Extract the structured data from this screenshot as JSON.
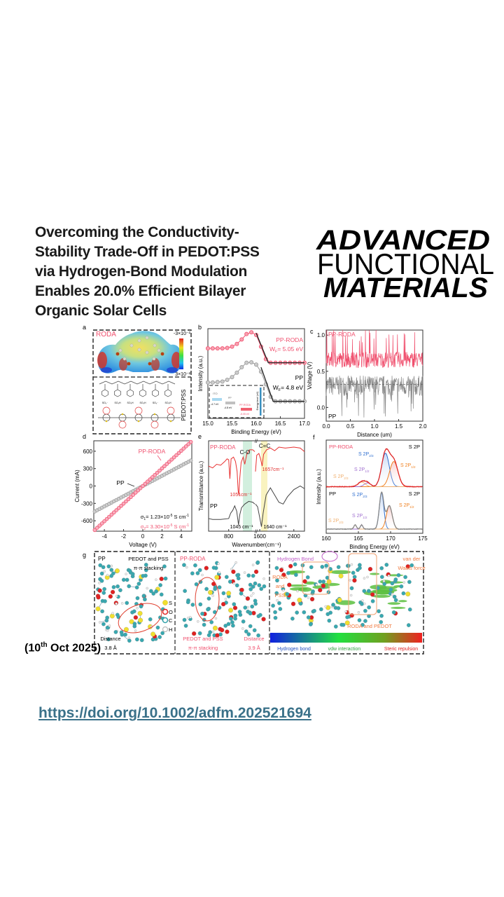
{
  "header": {
    "title_lines": [
      "Overcoming the Conductivity-",
      "Stability Trade-Off in PEDOT:PSS",
      "via Hydrogen-Bond Modulation",
      "Enables 20.0% Efficient Bilayer",
      "Organic Solar Cells"
    ],
    "journal_logo_lines": [
      "ADVANCED",
      "FUNCTIONAL",
      "MATERIALS"
    ]
  },
  "date": {
    "open": "(10",
    "sup": "th",
    "close": " Oct 2025)"
  },
  "doi_link": "https://doi.org/10.1002/adfm.202521694",
  "colors": {
    "pp_roda": "#f0506e",
    "pp": "#8a8a8a",
    "doi": "#3a7189",
    "annotation": "#f08a50",
    "hbond": "#c060c8"
  },
  "figure": {
    "labels": {
      "a": "a",
      "b": "b",
      "c": "c",
      "d": "d",
      "e": "e",
      "f": "f",
      "g": "g"
    },
    "a": {
      "molecule": "RODA",
      "scale_top": "-3×10⁻²",
      "scale_bottom": "3×10⁻²",
      "polymer": "PEDOT:PSS",
      "pss_groups": [
        "SO₃⁻",
        "SO₃H",
        "SO₃H",
        "SO₃H",
        "SO₃⁻",
        "SO₃H"
      ]
    },
    "b": {
      "roda_label": "PP-RODA",
      "roda_wf_main": "W",
      "roda_wf_sub": "F",
      "roda_wf_val": "= 5.05 eV",
      "pp_label": "PP",
      "pp_wf_main": "W",
      "pp_wf_sub": "F",
      "pp_wf_val": "= 4.8 eV",
      "inset": {
        "ito": "ITO",
        "ito_val": "-4.7 eV",
        "pp": "PP",
        "pp_val": "-4.8 eV",
        "roda": "PP-RODA",
        "roda_val": "-5.05 eV",
        "axis": "Energy level (eV)"
      }
    },
    "c": {
      "roda_label": "PP-RODA",
      "pp_label": "PP"
    },
    "d": {
      "roda_label": "PP-RODA",
      "pp_label": "PP",
      "sigma1": {
        "sym": "σ",
        "sub": "1",
        "val": "= 1.23×10",
        "exp": "-5",
        "unit": " S cm",
        "unit_exp": "-1"
      },
      "sigma2": {
        "sym": "σ",
        "sub": "2",
        "val": "= 3.30×10",
        "exp": "-5",
        "unit": " S cm",
        "unit_exp": "-1"
      }
    },
    "e": {
      "roda_label": "PP-RODA",
      "pp_label": "PP",
      "co": "C-O",
      "cc": "C=C",
      "roda_peak1": "1051cm⁻¹",
      "roda_peak2": "1657cm⁻¹",
      "pp_peak1": "1045 cm⁻¹",
      "pp_peak2": "1640 cm⁻¹"
    },
    "f": {
      "roda_label": "PP-RODA",
      "pp_label": "PP",
      "s2p": "S 2P",
      "p_main": "S 2P",
      "sub_23": "2/3",
      "sub_12": "1/2"
    },
    "g": {
      "pp": "PP",
      "pp_title1": "PEDOT and PSS",
      "pp_title2": "π-π stacking",
      "legend": [
        "S",
        "O",
        "C",
        "H"
      ],
      "pp_dist1": "Distance",
      "pp_dist2": "3.8 Å",
      "roda": "PP-RODA",
      "roda_stack1": "PEDOT and PSS",
      "roda_stack2": "π-π stacking",
      "roda_dist1": "Distance",
      "roda_dist2": "3.9 Å",
      "hbond": "Hydrogen Bond",
      "vdw1": "van der",
      "vdw2": "Waals force",
      "rp1": "RODA",
      "rp2": "and",
      "rp3": "PSS",
      "rpedot": "RODA and PEDOT",
      "scale_hb": "Hydrogen bond",
      "scale_vdw": "vdw interaction",
      "scale_steric": "Steric repulsion"
    }
  },
  "chart_data": [
    {
      "panel": "b",
      "type": "line",
      "xlabel": "Binding Energy (eV)",
      "ylabel": "Intensity (a.u.)",
      "xlim": [
        15,
        17
      ],
      "ylim": [
        0,
        1
      ],
      "xticks": [
        "15.0",
        "15.5",
        "16.0",
        "16.5",
        "17.0"
      ],
      "x": [
        15.0,
        15.1,
        15.2,
        15.3,
        15.4,
        15.5,
        15.6,
        15.7,
        15.8,
        15.9,
        16.0,
        16.1,
        16.2,
        16.3,
        16.4,
        16.5,
        16.6,
        16.7,
        16.8,
        16.9,
        17.0
      ],
      "series": [
        {
          "name": "PP-RODA",
          "y": [
            0.78,
            0.78,
            0.78,
            0.78,
            0.785,
            0.8,
            0.83,
            0.88,
            0.94,
            0.96,
            0.93,
            0.8,
            0.66,
            0.62,
            0.62,
            0.62,
            0.62,
            0.62,
            0.62,
            0.62,
            0.62
          ],
          "fit": [
            [
              16.0,
              0.95
            ],
            [
              16.25,
              0.62
            ],
            [
              17.0,
              0.62
            ]
          ]
        },
        {
          "name": "PP",
          "y": [
            0.4,
            0.4,
            0.405,
            0.41,
            0.43,
            0.46,
            0.51,
            0.57,
            0.62,
            0.625,
            0.6,
            0.52,
            0.38,
            0.24,
            0.19,
            0.19,
            0.19,
            0.19,
            0.19,
            0.19,
            0.19
          ],
          "fit": [
            [
              16.1,
              0.57
            ],
            [
              16.35,
              0.19
            ],
            [
              17.0,
              0.19
            ]
          ]
        }
      ]
    },
    {
      "panel": "c",
      "type": "line",
      "xlabel": "Distance (um)",
      "ylabel": "Voltage (V)",
      "xlim": [
        0,
        2
      ],
      "ylim": [
        -0.19,
        1.07
      ],
      "xticks": [
        "0.0",
        "0.5",
        "1.0",
        "1.5",
        "2.0"
      ],
      "yticks": [
        "0.0",
        "0.5",
        "1.0"
      ],
      "series": [
        {
          "name": "PP-RODA",
          "mean": 0.66,
          "spread": 0.11
        },
        {
          "name": "PP",
          "mean": 0.3,
          "spread": 0.14
        }
      ],
      "reference_line": 0.32
    },
    {
      "panel": "d",
      "type": "line",
      "xlabel": "Voltage (V)",
      "ylabel": "Current (mA)",
      "xlim": [
        -5.1,
        5.1
      ],
      "ylim": [
        -780,
        780
      ],
      "xticks": [
        "-4",
        "-2",
        "0",
        "2",
        "4"
      ],
      "yticks": [
        "-600",
        "-300",
        "0",
        "300",
        "600"
      ],
      "series": [
        {
          "name": "PP-RODA",
          "x": [
            -5,
            5
          ],
          "y": [
            -760,
            760
          ]
        },
        {
          "name": "PP",
          "x": [
            -5,
            5
          ],
          "y": [
            -440,
            440
          ]
        }
      ]
    },
    {
      "panel": "e",
      "type": "line",
      "xlabel": "Wavenumber(cm⁻¹)",
      "ylabel": "Transmittance (a.u.)",
      "xticks": [
        "800",
        "1600",
        "2400"
      ],
      "axis_break": [
        1450,
        1500
      ],
      "xlim": [
        300,
        2650
      ],
      "ylim": [
        0,
        1
      ],
      "series": [
        {
          "name": "PP-RODA",
          "points": [
            [
              300,
              0.72
            ],
            [
              400,
              0.7
            ],
            [
              500,
              0.74
            ],
            [
              600,
              0.73
            ],
            [
              700,
              0.77
            ],
            [
              760,
              0.8
            ],
            [
              800,
              0.79
            ],
            [
              830,
              0.58
            ],
            [
              860,
              0.8
            ],
            [
              920,
              0.82
            ],
            [
              970,
              0.77
            ],
            [
              1010,
              0.66
            ],
            [
              1035,
              0.45
            ],
            [
              1051,
              0.4
            ],
            [
              1075,
              0.58
            ],
            [
              1110,
              0.76
            ],
            [
              1160,
              0.82
            ],
            [
              1200,
              0.74
            ],
            [
              1250,
              0.85
            ],
            [
              1320,
              0.9
            ],
            [
              1400,
              0.9
            ],
            [
              1450,
              0.88
            ],
            [
              1500,
              0.66
            ],
            [
              1530,
              0.84
            ],
            [
              1580,
              0.86
            ],
            [
              1620,
              0.8
            ],
            [
              1657,
              0.72
            ],
            [
              1690,
              0.85
            ],
            [
              1760,
              0.9
            ],
            [
              1850,
              0.92
            ],
            [
              1950,
              0.89
            ],
            [
              2050,
              0.93
            ],
            [
              2200,
              0.92
            ],
            [
              2400,
              0.93
            ],
            [
              2550,
              0.92
            ],
            [
              2650,
              0.88
            ]
          ]
        },
        {
          "name": "PP",
          "points": [
            [
              300,
              0.14
            ],
            [
              400,
              0.13
            ],
            [
              600,
              0.13
            ],
            [
              800,
              0.14
            ],
            [
              850,
              0.2
            ],
            [
              900,
              0.23
            ],
            [
              950,
              0.28
            ],
            [
              1000,
              0.22
            ],
            [
              1030,
              0.12
            ],
            [
              1045,
              0.07
            ],
            [
              1075,
              0.18
            ],
            [
              1120,
              0.26
            ],
            [
              1200,
              0.3
            ],
            [
              1300,
              0.33
            ],
            [
              1400,
              0.32
            ],
            [
              1450,
              0.3
            ],
            [
              1500,
              0.3
            ],
            [
              1550,
              0.27
            ],
            [
              1600,
              0.15
            ],
            [
              1640,
              0.05
            ],
            [
              1680,
              0.2
            ],
            [
              1750,
              0.4
            ],
            [
              1850,
              0.48
            ],
            [
              1950,
              0.4
            ],
            [
              2050,
              0.32
            ],
            [
              2150,
              0.3
            ],
            [
              2250,
              0.38
            ],
            [
              2400,
              0.46
            ],
            [
              2550,
              0.5
            ],
            [
              2650,
              0.47
            ]
          ]
        }
      ]
    },
    {
      "panel": "f",
      "type": "area",
      "xlabel": "Binding Energy (eV)",
      "ylabel": "Intensity (a.u.)",
      "xlim": [
        160,
        175
      ],
      "ylim": [
        0,
        1
      ],
      "xticks": [
        "160",
        "165",
        "170",
        "175"
      ],
      "series": [
        {
          "name": "PP-RODA",
          "baseline": 0.5,
          "components": [
            {
              "label": "S 2P2/3",
              "center": 169.2,
              "height": 0.36,
              "sigma": 0.6,
              "color": "#2f6fd0"
            },
            {
              "label": "S 2P1/2",
              "center": 170.5,
              "height": 0.27,
              "sigma": 0.65,
              "color": "#f08020"
            },
            {
              "label": "S 2P1/2 (minor)",
              "center": 166.4,
              "height": 0.04,
              "sigma": 0.5,
              "color": "#a070d0"
            },
            {
              "label": "S 2P2/3 (minor)",
              "center": 165.5,
              "height": 0.05,
              "sigma": 0.55,
              "color": "#f0b070"
            }
          ]
        },
        {
          "name": "PP",
          "baseline": 0.045,
          "components": [
            {
              "label": "S 2P2/3",
              "center": 168.6,
              "height": 0.39,
              "sigma": 0.35,
              "color": "#2f6fd0"
            },
            {
              "label": "S 2P1/2",
              "center": 169.8,
              "height": 0.25,
              "sigma": 0.45,
              "color": "#f08020"
            },
            {
              "label": "S 2P1/2 (minor)",
              "center": 165.5,
              "height": 0.045,
              "sigma": 0.2,
              "color": "#a070d0"
            },
            {
              "label": "S 2P2/3 (minor)",
              "center": 164.5,
              "height": 0.045,
              "sigma": 0.2,
              "color": "#f0b070"
            }
          ]
        }
      ]
    }
  ]
}
